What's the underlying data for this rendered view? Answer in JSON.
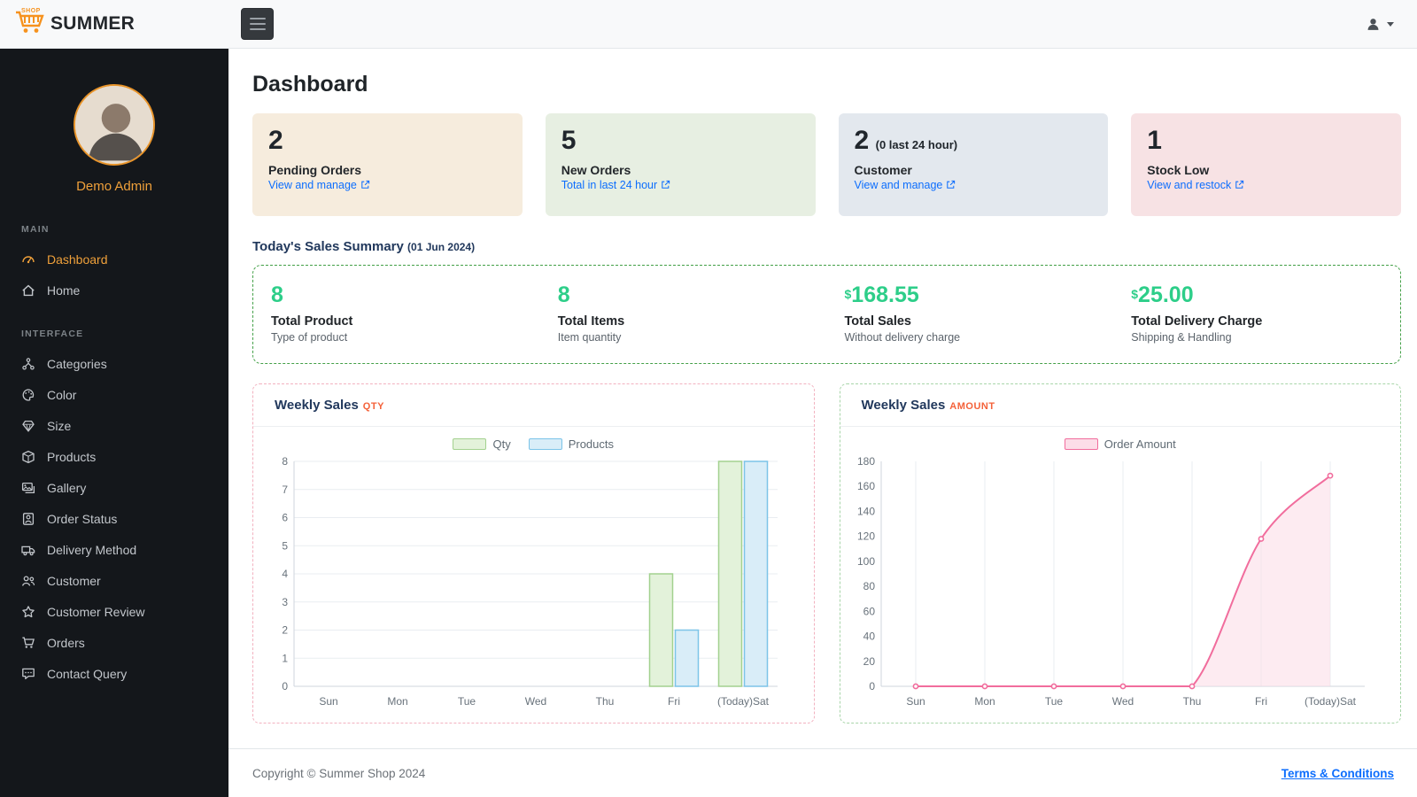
{
  "colors": {
    "accent": "#efa03a",
    "link": "#0d6efd",
    "green": "#2dce89",
    "navy": "#21385c",
    "badge": "#f4623a",
    "summary_border": "#43a047",
    "chart1_border": "#f2b1bf",
    "chart2_border": "#a8d5a9",
    "sidebar_bg": "#14171b",
    "topbar_bg": "#f8f9fa"
  },
  "topbar": {
    "logo_shop": "SHOP",
    "logo_summer": "SUMMER"
  },
  "sidebar": {
    "admin_name": "Demo Admin",
    "sections": [
      {
        "label": "MAIN",
        "items": [
          {
            "label": "Dashboard"
          },
          {
            "label": "Home"
          }
        ]
      },
      {
        "label": "INTERFACE",
        "items": [
          {
            "label": "Categories"
          },
          {
            "label": "Color"
          },
          {
            "label": "Size"
          },
          {
            "label": "Products"
          },
          {
            "label": "Gallery"
          },
          {
            "label": "Order Status"
          },
          {
            "label": "Delivery Method"
          },
          {
            "label": "Customer"
          },
          {
            "label": "Customer Review"
          },
          {
            "label": "Orders"
          },
          {
            "label": "Contact Query"
          }
        ]
      }
    ]
  },
  "main": {
    "title": "Dashboard",
    "stat_cards": [
      {
        "value": "2",
        "suffix": "",
        "label": "Pending Orders",
        "link": "View and manage",
        "bg": "#f6ecdd"
      },
      {
        "value": "5",
        "suffix": "",
        "label": "New Orders",
        "link": "Total in last 24 hour",
        "bg": "#e7efe2"
      },
      {
        "value": "2",
        "suffix": "(0 last 24 hour)",
        "label": "Customer",
        "link": "View and manage",
        "bg": "#e3e8ee"
      },
      {
        "value": "1",
        "suffix": "",
        "label": "Stock Low",
        "link": "View and restock",
        "bg": "#f7e2e4"
      }
    ],
    "summary_heading": "Today's Sales Summary",
    "summary_date": "(01 Jun 2024)",
    "summary_metrics": [
      {
        "prefix": "",
        "value": "8",
        "label": "Total Product",
        "sub": "Type of product"
      },
      {
        "prefix": "",
        "value": "8",
        "label": "Total Items",
        "sub": "Item quantity"
      },
      {
        "prefix": "$",
        "value": "168.55",
        "label": "Total Sales",
        "sub": "Without delivery charge"
      },
      {
        "prefix": "$",
        "value": "25.00",
        "label": "Total Delivery Charge",
        "sub": "Shipping & Handling"
      }
    ],
    "charts": [
      {
        "title": "Weekly Sales",
        "badge": "QTY"
      },
      {
        "title": "Weekly Sales",
        "badge": "AMOUNT"
      }
    ]
  },
  "footer": {
    "copyright": "Copyright © Summer Shop 2024",
    "terms": "Terms & Conditions"
  },
  "chart_data": [
    {
      "type": "bar",
      "title": "Weekly Sales QTY",
      "categories": [
        "Sun",
        "Mon",
        "Tue",
        "Wed",
        "Thu",
        "Fri",
        "(Today)Sat"
      ],
      "series": [
        {
          "name": "Qty",
          "values": [
            0,
            0,
            0,
            0,
            0,
            4,
            8
          ],
          "fill": "#e3f2da",
          "stroke": "#a3d18f"
        },
        {
          "name": "Products",
          "values": [
            0,
            0,
            0,
            0,
            0,
            2,
            8
          ],
          "fill": "#d9edf8",
          "stroke": "#7cc4e8"
        }
      ],
      "xlabel": "",
      "ylabel": "",
      "ylim": [
        0,
        8
      ],
      "ytick_step": 1,
      "grid": "horizontal",
      "legend_position": "top"
    },
    {
      "type": "line",
      "title": "Weekly Sales AMOUNT",
      "categories": [
        "Sun",
        "Mon",
        "Tue",
        "Wed",
        "Thu",
        "Fri",
        "(Today)Sat"
      ],
      "series": [
        {
          "name": "Order Amount",
          "values": [
            0,
            0,
            0,
            0,
            0,
            118,
            168.55
          ],
          "stroke": "#f16d9d",
          "fill": "#fcdde8"
        }
      ],
      "xlabel": "",
      "ylabel": "",
      "ylim": [
        0,
        180
      ],
      "ytick_step": 20,
      "grid": "vertical",
      "legend_position": "top"
    }
  ]
}
